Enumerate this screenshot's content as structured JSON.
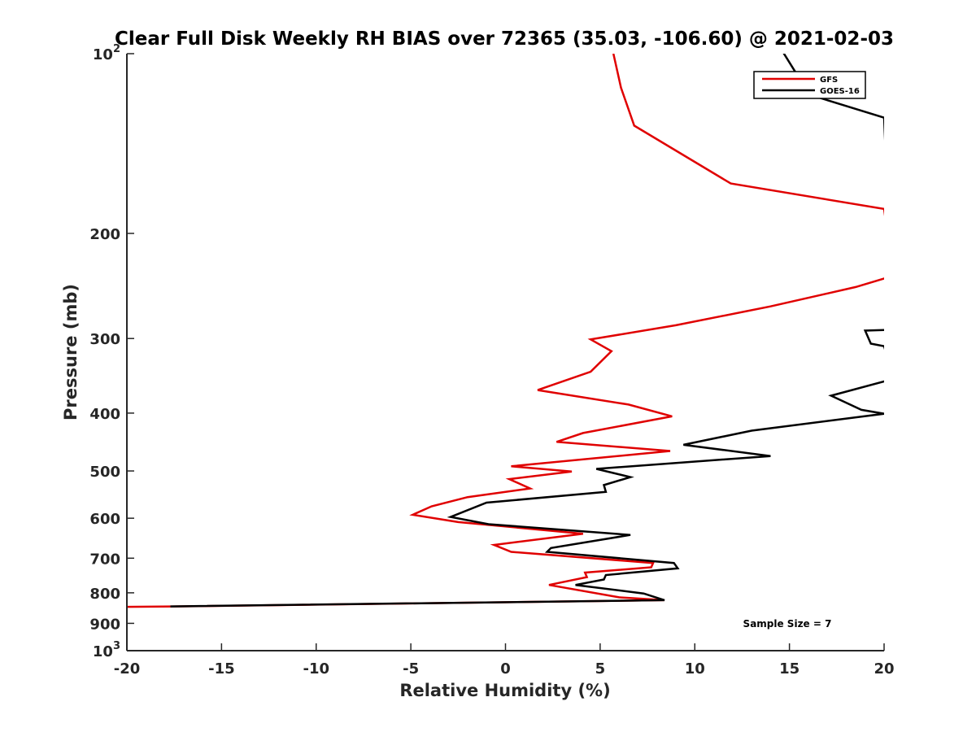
{
  "chart_data": {
    "type": "line",
    "title": "Clear Full Disk Weekly RH BIAS over 72365 (35.03, -106.60) @ 2021-02-03",
    "xlabel": "Relative Humidity (%)",
    "ylabel": "Pressure (mb)",
    "xlim": [
      -20,
      20
    ],
    "ylim": [
      100,
      1000
    ],
    "y_scale": "log",
    "y_reversed": true,
    "grid": false,
    "legend_position": "top-right",
    "x_ticks": [
      "-20",
      "-15",
      "-10",
      "-5",
      "0",
      "5",
      "10",
      "15",
      "20"
    ],
    "x_tick_values": [
      -20,
      -15,
      -10,
      -5,
      0,
      5,
      10,
      15,
      20
    ],
    "y_ticks": [
      {
        "value": 100,
        "base": "10",
        "exp": "2"
      },
      {
        "value": 200,
        "label": "200"
      },
      {
        "value": 300,
        "label": "300"
      },
      {
        "value": 400,
        "label": "400"
      },
      {
        "value": 500,
        "label": "500"
      },
      {
        "value": 600,
        "label": "600"
      },
      {
        "value": 700,
        "label": "700"
      },
      {
        "value": 800,
        "label": "800"
      },
      {
        "value": 900,
        "label": "900"
      },
      {
        "value": 1000,
        "base": "10",
        "exp": "3"
      }
    ],
    "series": [
      {
        "name": "GFS",
        "color": "#e00000",
        "points": [
          [
            5.7,
            100
          ],
          [
            6.1,
            114
          ],
          [
            6.8,
            132
          ],
          [
            11.9,
            165
          ],
          [
            20.0,
            182
          ],
          [
            20.5,
            236
          ],
          [
            20.0,
            238
          ],
          [
            18.5,
            246
          ],
          [
            14.0,
            265
          ],
          [
            9.0,
            285
          ],
          [
            4.5,
            301
          ],
          [
            5.6,
            315
          ],
          [
            4.5,
            341
          ],
          [
            1.7,
            366
          ],
          [
            6.5,
            387
          ],
          [
            8.8,
            405
          ],
          [
            4.1,
            432
          ],
          [
            2.7,
            447
          ],
          [
            8.7,
            463
          ],
          [
            0.3,
            491
          ],
          [
            3.5,
            501
          ],
          [
            0.2,
            516
          ],
          [
            1.3,
            535
          ],
          [
            -2.0,
            553
          ],
          [
            -3.9,
            573
          ],
          [
            -4.9,
            592
          ],
          [
            -2.5,
            609
          ],
          [
            4.1,
            637
          ],
          [
            -0.6,
            665
          ],
          [
            0.3,
            683
          ],
          [
            7.8,
            713
          ],
          [
            7.7,
            725
          ],
          [
            4.2,
            740
          ],
          [
            4.3,
            753
          ],
          [
            2.3,
            776
          ],
          [
            6.0,
            814
          ],
          [
            8.4,
            823
          ],
          [
            -17.5,
            843
          ],
          [
            -20.5,
            845
          ]
        ]
      },
      {
        "name": "GOES-16",
        "color": "#000000",
        "points": [
          [
            14.0,
            92
          ],
          [
            15.6,
            111
          ],
          [
            16.0,
            117
          ],
          [
            20.0,
            128
          ],
          [
            20.5,
            290
          ],
          [
            19.0,
            291
          ],
          [
            19.3,
            306
          ],
          [
            20.0,
            309
          ],
          [
            20.5,
            351
          ],
          [
            20.0,
            354
          ],
          [
            17.2,
            374
          ],
          [
            18.8,
            395
          ],
          [
            20.0,
            401
          ],
          [
            13.0,
            428
          ],
          [
            9.4,
            452
          ],
          [
            14.0,
            472
          ],
          [
            4.8,
            496
          ],
          [
            6.6,
            512
          ],
          [
            5.2,
            528
          ],
          [
            5.3,
            542
          ],
          [
            -1.0,
            565
          ],
          [
            -2.9,
            597
          ],
          [
            -0.9,
            614
          ],
          [
            6.6,
            640
          ],
          [
            2.4,
            673
          ],
          [
            2.2,
            683
          ],
          [
            8.9,
            713
          ],
          [
            9.1,
            728
          ],
          [
            5.3,
            747
          ],
          [
            5.2,
            760
          ],
          [
            3.7,
            776
          ],
          [
            7.3,
            802
          ],
          [
            8.4,
            823
          ],
          [
            -17.7,
            843
          ]
        ]
      }
    ],
    "annotations": [
      {
        "text": "Sample Size = 7",
        "position": "bottom-right"
      }
    ]
  }
}
